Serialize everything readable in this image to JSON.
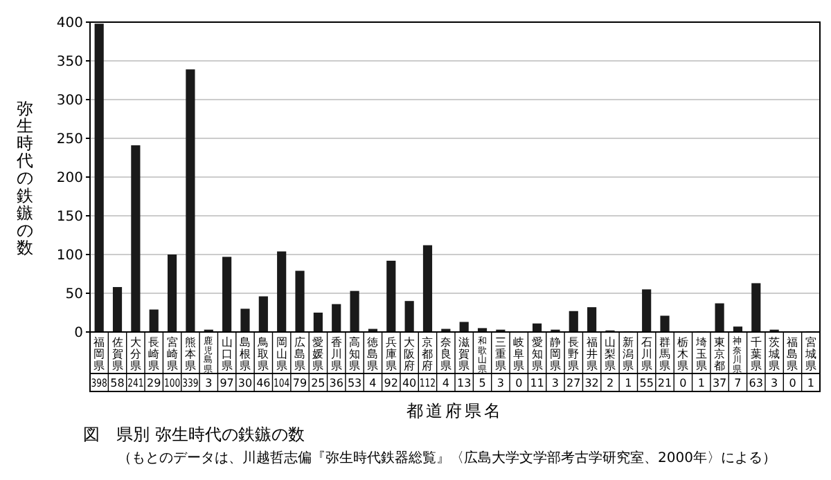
{
  "chart_data": {
    "type": "bar",
    "title": "図　県別 弥生時代の鉄鏃の数",
    "xlabel": "都道府県名",
    "ylabel": "弥生時代の鉄鏃の数",
    "annotations": [
      "（もとのデータは、川越哲志偏『弥生時代鉄器総覧』〈広島大学文学部考古学研究室、2000年〉による）"
    ],
    "categories": [
      "福岡県",
      "佐賀県",
      "大分県",
      "長崎県",
      "宮崎県",
      "熊本県",
      "鹿児島県",
      "山口県",
      "島根県",
      "鳥取県",
      "岡山県",
      "広島県",
      "愛媛県",
      "香川県",
      "高知県",
      "徳島県",
      "兵庫県",
      "大阪府",
      "京都府",
      "奈良県",
      "滋賀県",
      "和歌山県",
      "三重県",
      "岐阜県",
      "愛知県",
      "静岡県",
      "長野県",
      "福井県",
      "山梨県",
      "新潟県",
      "石川県",
      "群馬県",
      "栃木県",
      "埼玉県",
      "東京都",
      "神奈川県",
      "千葉県",
      "茨城県",
      "福島県",
      "宮城県"
    ],
    "values": [
      398,
      58,
      241,
      29,
      100,
      339,
      3,
      97,
      30,
      46,
      104,
      79,
      25,
      36,
      53,
      4,
      92,
      40,
      112,
      4,
      13,
      5,
      3,
      0,
      11,
      3,
      27,
      32,
      2,
      1,
      55,
      21,
      0,
      1,
      37,
      7,
      63,
      3,
      0,
      1
    ],
    "color": "#1a1a1a",
    "ylim": [
      0,
      400
    ],
    "yticks": [
      0,
      50,
      100,
      150,
      200,
      250,
      300,
      350,
      400
    ],
    "grid": "y",
    "data_labels": true
  }
}
